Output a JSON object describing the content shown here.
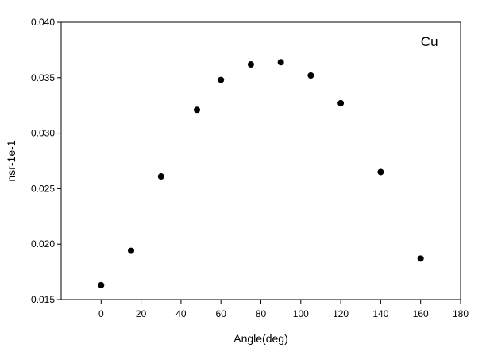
{
  "chart_data": {
    "type": "scatter",
    "title": "",
    "xlabel": "Angle(deg)",
    "ylabel": "nsr-1e-1",
    "xlim": [
      -20,
      180
    ],
    "ylim": [
      0.015,
      0.04
    ],
    "xticks": [
      0,
      20,
      40,
      60,
      80,
      100,
      120,
      140,
      160,
      180
    ],
    "yticks": [
      0.015,
      0.02,
      0.025,
      0.03,
      0.035,
      0.04
    ],
    "ytick_labels": [
      "0.015",
      "0.020",
      "0.025",
      "0.030",
      "0.035",
      "0.040"
    ],
    "grid": false,
    "legend": "none",
    "annotations": [
      {
        "text": "Cu",
        "x": 158,
        "y": 0.0387
      }
    ],
    "series": [
      {
        "marker": "filled-circle",
        "color": "#000000",
        "x": [
          0,
          15,
          30,
          48,
          60,
          75,
          90,
          105,
          120,
          140,
          160
        ],
        "y": [
          0.0163,
          0.0194,
          0.0261,
          0.0321,
          0.0348,
          0.0362,
          0.0364,
          0.0352,
          0.0327,
          0.0265,
          0.0187
        ]
      }
    ]
  }
}
